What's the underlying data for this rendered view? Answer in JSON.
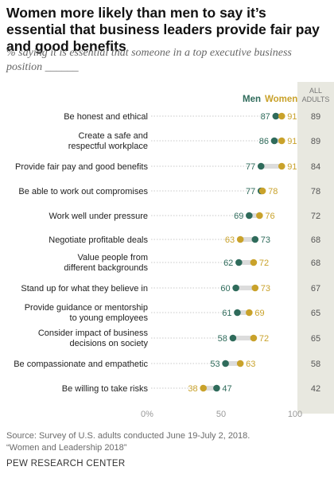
{
  "title": "Women more likely than men to say it’s essential that business leaders provide fair pay and good benefits",
  "subtitle": "% saying it is essential that someone in a top executive business position ______",
  "chart_data": {
    "type": "dot",
    "legend": {
      "men": "Men",
      "women": "Women",
      "all": [
        "ALL",
        "ADULTS"
      ]
    },
    "colors": {
      "men": "#2f6b5b",
      "women": "#c9a22b",
      "all_band": "#e8e8e0",
      "connector": "#dcdcdc"
    },
    "xlim": [
      0,
      100
    ],
    "x_ticks": [
      "0%",
      "50",
      "100"
    ],
    "categories": [
      {
        "label": [
          "Be honest and ethical"
        ],
        "men": 87,
        "women": 91,
        "all": 89
      },
      {
        "label": [
          "Create a safe and",
          "respectful workplace"
        ],
        "men": 86,
        "women": 91,
        "all": 89
      },
      {
        "label": [
          "Provide fair pay and good benefits"
        ],
        "men": 77,
        "women": 91,
        "all": 84
      },
      {
        "label": [
          "Be able to work out compromises"
        ],
        "men": 77,
        "women": 78,
        "all": 78
      },
      {
        "label": [
          "Work well under pressure"
        ],
        "men": 69,
        "women": 76,
        "all": 72
      },
      {
        "label": [
          "Negotiate profitable deals"
        ],
        "men": 73,
        "women": 63,
        "all": 68
      },
      {
        "label": [
          "Value people from",
          "different backgrounds"
        ],
        "men": 62,
        "women": 72,
        "all": 68
      },
      {
        "label": [
          "Stand up for what they believe in"
        ],
        "men": 60,
        "women": 73,
        "all": 67
      },
      {
        "label": [
          "Provide guidance or mentorship",
          "to young employees"
        ],
        "men": 61,
        "women": 69,
        "all": 65
      },
      {
        "label": [
          "Consider impact of business",
          "decisions on society"
        ],
        "men": 58,
        "women": 72,
        "all": 65
      },
      {
        "label": [
          "Be compassionate and empathetic"
        ],
        "men": 53,
        "women": 63,
        "all": 58
      },
      {
        "label": [
          "Be willing to take risks"
        ],
        "men": 47,
        "women": 38,
        "all": 42
      }
    ]
  },
  "source": [
    "Source: Survey of U.S. adults conducted June 19-July 2, 2018.",
    "“Women and Leadership 2018”"
  ],
  "org": "PEW RESEARCH CENTER"
}
